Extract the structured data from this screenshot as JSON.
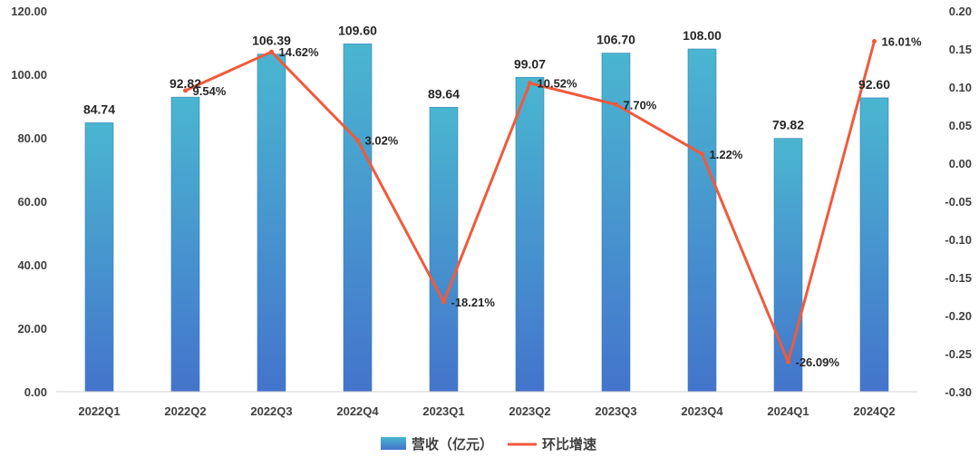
{
  "chart_data": {
    "type": "bar",
    "categories": [
      "2022Q1",
      "2022Q2",
      "2022Q3",
      "2022Q4",
      "2023Q1",
      "2023Q2",
      "2023Q3",
      "2023Q4",
      "2024Q1",
      "2024Q2"
    ],
    "series": [
      {
        "name": "营收（亿元）",
        "type": "bar",
        "axis": "left",
        "values": [
          84.74,
          92.82,
          106.39,
          109.6,
          89.64,
          99.07,
          106.7,
          108.0,
          79.82,
          92.6
        ],
        "labels": [
          "84.74",
          "92.82",
          "106.39",
          "109.60",
          "89.64",
          "99.07",
          "106.70",
          "108.00",
          "79.82",
          "92.60"
        ],
        "color": "#3a9fd0"
      },
      {
        "name": "环比增速",
        "type": "line",
        "axis": "right",
        "values": [
          null,
          0.0954,
          0.1462,
          0.0302,
          -0.1821,
          0.1052,
          0.077,
          0.0122,
          -0.2609,
          0.1601
        ],
        "labels": [
          "",
          "9.54%",
          "14.62%",
          "3.02%",
          "-18.21%",
          "10.52%",
          "7.70%",
          "1.22%",
          "-26.09%",
          "16.01%"
        ],
        "color": "#f05a3c"
      }
    ],
    "y_left": {
      "range": [
        0,
        120
      ],
      "ticks": [
        "0.00",
        "20.00",
        "40.00",
        "60.00",
        "80.00",
        "100.00",
        "120.00"
      ]
    },
    "y_right": {
      "range": [
        -0.3,
        0.2
      ],
      "ticks": [
        "-0.30",
        "-0.25",
        "-0.20",
        "-0.15",
        "-0.10",
        "-0.05",
        "0.00",
        "0.05",
        "0.10",
        "0.15",
        "0.20"
      ]
    },
    "grid": false,
    "legend_position": "bottom-center"
  }
}
